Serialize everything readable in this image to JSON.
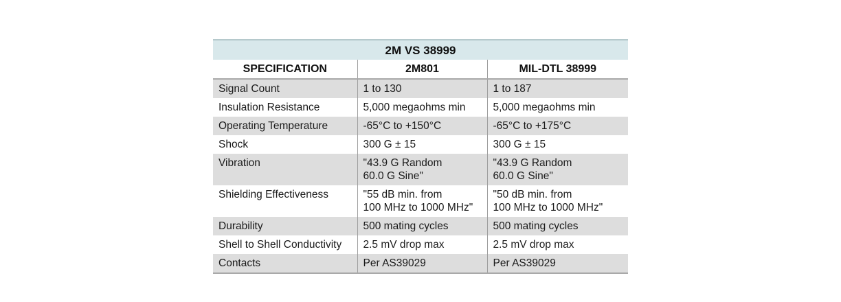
{
  "table": {
    "title": "2M VS 38999",
    "headers": [
      "SPECIFICATION",
      "2M801",
      "MIL-DTL 38999"
    ],
    "rows": [
      [
        "Signal Count",
        "1 to 130",
        "1 to 187"
      ],
      [
        "Insulation Resistance",
        "5,000 megaohms min",
        "5,000 megaohms min"
      ],
      [
        "Operating Temperature",
        "-65°C to +150°C",
        "-65°C to +175°C"
      ],
      [
        "Shock",
        "300 G ± 15",
        "300 G ± 15"
      ],
      [
        "Vibration",
        "\"43.9 G Random\n60.0 G Sine\"",
        "\"43.9 G Random\n60.0 G Sine\""
      ],
      [
        "Shielding Effectiveness",
        "\"55 dB min. from\n100 MHz to 1000 MHz\"",
        "\"50 dB min. from\n100 MHz to 1000 MHz\""
      ],
      [
        "Durability",
        "500 mating cycles",
        "500 mating cycles"
      ],
      [
        "Shell to Shell Conductivity",
        "2.5 mV drop max",
        "2.5 mV drop max"
      ],
      [
        "Contacts",
        "Per AS39029",
        "Per AS39029"
      ]
    ]
  }
}
